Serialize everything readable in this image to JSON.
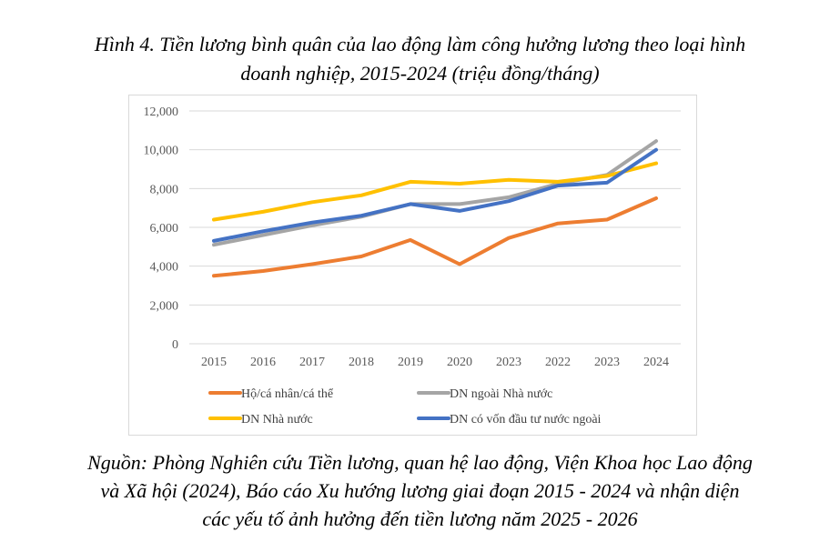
{
  "figure": {
    "title_lines": [
      "Hình 4. Tiền lương bình quân của lao động làm công hưởng lương theo loại hình",
      "doanh nghiệp, 2015-2024 (triệu đồng/tháng)"
    ],
    "source_lines": [
      "Nguồn: Phòng Nghiên cứu Tiền lương, quan hệ lao động, Viện Khoa học Lao động",
      "và Xã hội (2024), Báo cáo Xu hướng lương giai đoạn 2015 - 2024 và nhận diện",
      "các yếu tố ảnh hưởng đến tiền lương năm 2025 - 2026"
    ]
  },
  "chart_data": {
    "type": "line",
    "title": "Hình 4. Tiền lương bình quân của lao động làm công hưởng lương theo loại hình doanh nghiệp, 2015-2024 (triệu đồng/tháng)",
    "xlabel": "",
    "ylabel": "",
    "categories": [
      "2015",
      "2016",
      "2017",
      "2018",
      "2019",
      "2020",
      "2023",
      "2022",
      "2023",
      "2024"
    ],
    "ylim": [
      0,
      12000
    ],
    "yticks": [
      0,
      2000,
      4000,
      6000,
      8000,
      10000,
      12000
    ],
    "ytick_labels": [
      "0",
      "2,000",
      "4,000",
      "6,000",
      "8,000",
      "10,000",
      "12,000"
    ],
    "grid": true,
    "legend_position": "bottom",
    "series": [
      {
        "name": "Hộ/cá nhân/cá thể",
        "color": "#ED7D31",
        "values": [
          3500,
          3750,
          4100,
          4500,
          5350,
          4100,
          5450,
          6200,
          6400,
          7500
        ]
      },
      {
        "name": "DN ngoài Nhà nước",
        "color": "#A5A5A5",
        "values": [
          5100,
          5600,
          6100,
          6550,
          7200,
          7200,
          7550,
          8250,
          8700,
          10450
        ]
      },
      {
        "name": "DN Nhà nước",
        "color": "#FFC000",
        "values": [
          6400,
          6800,
          7300,
          7650,
          8350,
          8250,
          8450,
          8350,
          8650,
          9300
        ]
      },
      {
        "name": "DN có vốn đầu tư nước ngoài",
        "color": "#4472C4",
        "values": [
          5300,
          5800,
          6250,
          6600,
          7200,
          6850,
          7350,
          8150,
          8300,
          10000
        ]
      }
    ]
  }
}
